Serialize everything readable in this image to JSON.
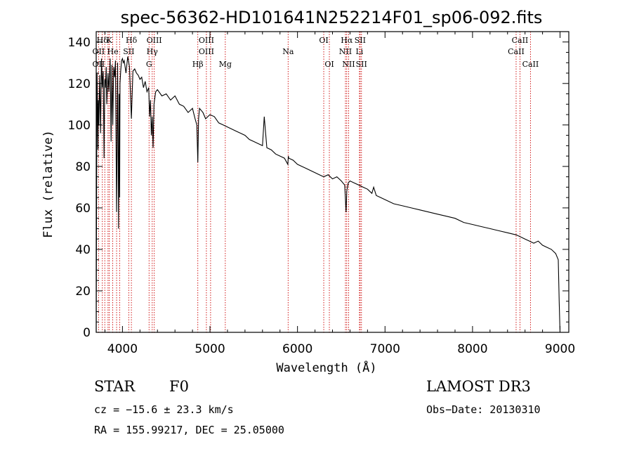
{
  "chart_data": {
    "type": "line",
    "title": "spec-56362-HD101641N252214F01_sp06-092.fits",
    "xlabel": "Wavelength (Å)",
    "ylabel": "Flux (relative)",
    "xlim": [
      3700,
      9100
    ],
    "ylim": [
      0,
      145
    ],
    "x_ticks": [
      4000,
      5000,
      6000,
      7000,
      8000,
      9000
    ],
    "y_ticks": [
      0,
      20,
      40,
      60,
      80,
      100,
      120,
      140
    ],
    "grid": false,
    "series": [
      {
        "name": "spectrum",
        "x": [
          3700,
          3705,
          3710,
          3715,
          3720,
          3725,
          3730,
          3740,
          3750,
          3760,
          3770,
          3780,
          3790,
          3798,
          3805,
          3815,
          3820,
          3835,
          3845,
          3860,
          3870,
          3880,
          3889,
          3900,
          3910,
          3920,
          3933,
          3945,
          3955,
          3962,
          3968,
          3972,
          3980,
          3990,
          4000,
          4010,
          4020,
          4040,
          4060,
          4080,
          4102,
          4120,
          4140,
          4160,
          4180,
          4200,
          4220,
          4240,
          4260,
          4280,
          4300,
          4310,
          4320,
          4330,
          4340,
          4350,
          4360,
          4380,
          4400,
          4450,
          4500,
          4550,
          4600,
          4650,
          4700,
          4750,
          4800,
          4830,
          4850,
          4861,
          4870,
          4880,
          4900,
          4920,
          4950,
          5000,
          5050,
          5100,
          5150,
          5200,
          5250,
          5300,
          5350,
          5400,
          5450,
          5500,
          5550,
          5600,
          5620,
          5650,
          5700,
          5750,
          5800,
          5850,
          5890,
          5895,
          5900,
          5950,
          6000,
          6050,
          6100,
          6150,
          6200,
          6250,
          6300,
          6350,
          6400,
          6450,
          6500,
          6540,
          6555,
          6563,
          6570,
          6580,
          6600,
          6650,
          6700,
          6750,
          6800,
          6850,
          6870,
          6900,
          6950,
          7000,
          7100,
          7200,
          7300,
          7400,
          7500,
          7600,
          7700,
          7800,
          7900,
          8000,
          8100,
          8200,
          8300,
          8400,
          8500,
          8550,
          8600,
          8650,
          8700,
          8750,
          8800,
          8850,
          8900,
          8950,
          8980,
          8990,
          9000
        ],
        "values": [
          0,
          70,
          125,
          108,
          88,
          112,
          100,
          124,
          96,
          132,
          118,
          126,
          84,
          122,
          118,
          128,
          110,
          125,
          116,
          132,
          92,
          129,
          100,
          128,
          123,
          131,
          58,
          130,
          50,
          115,
          65,
          120,
          126,
          131,
          132,
          130,
          131,
          125,
          133,
          128,
          103,
          126,
          127,
          125,
          124,
          122,
          123,
          118,
          121,
          116,
          118,
          104,
          112,
          95,
          104,
          89,
          110,
          116,
          117,
          114,
          115,
          112,
          114,
          110,
          109,
          106,
          108,
          103,
          100,
          82,
          103,
          108,
          107,
          106,
          103,
          105,
          104,
          101,
          100,
          99,
          98,
          97,
          96,
          95,
          93,
          92,
          91,
          90,
          104,
          89,
          88,
          86,
          85,
          84,
          81,
          85,
          84,
          83,
          81,
          80,
          79,
          78,
          77,
          76,
          75,
          76,
          74,
          75,
          73,
          71,
          58,
          68,
          70,
          72,
          73,
          72,
          71,
          70,
          69,
          67,
          70,
          66,
          65,
          64,
          62,
          61,
          60,
          59,
          58,
          57,
          56,
          55,
          53,
          52,
          51,
          50,
          49,
          48,
          47,
          46,
          45,
          44,
          43,
          44,
          42,
          41,
          40,
          38,
          35,
          15,
          0
        ]
      }
    ],
    "line_markers": [
      {
        "label": "Hδ",
        "wavelength": 3770,
        "row": 1
      },
      {
        "label": "K",
        "wavelength": 3850,
        "row": 1
      },
      {
        "label": "Hδ",
        "wavelength": 4102,
        "row": 1
      },
      {
        "label": "OIII",
        "wavelength": 4363,
        "row": 1
      },
      {
        "label": "OIII",
        "wavelength": 4959,
        "row": 1
      },
      {
        "label": "OI",
        "wavelength": 6300,
        "row": 1
      },
      {
        "label": "Hα",
        "wavelength": 6563,
        "row": 1
      },
      {
        "label": "SII",
        "wavelength": 6716,
        "row": 1
      },
      {
        "label": "CaII",
        "wavelength": 8542,
        "row": 1
      },
      {
        "label": "OII",
        "wavelength": 3727,
        "row": 2
      },
      {
        "label": "He",
        "wavelength": 3889,
        "row": 2
      },
      {
        "label": "SII",
        "wavelength": 4072,
        "row": 2
      },
      {
        "label": "Hγ",
        "wavelength": 4340,
        "row": 2
      },
      {
        "label": "OIII",
        "wavelength": 4959,
        "row": 2
      },
      {
        "label": "Na",
        "wavelength": 5893,
        "row": 2
      },
      {
        "label": "NII",
        "wavelength": 6548,
        "row": 2
      },
      {
        "label": "Li",
        "wavelength": 6708,
        "row": 2
      },
      {
        "label": "CaII",
        "wavelength": 8498,
        "row": 2
      },
      {
        "label": "OII",
        "wavelength": 3727,
        "row": 3
      },
      {
        "label": "G",
        "wavelength": 4304,
        "row": 3
      },
      {
        "label": "Hβ",
        "wavelength": 4861,
        "row": 3
      },
      {
        "label": "Mg",
        "wavelength": 5175,
        "row": 3
      },
      {
        "label": "OI",
        "wavelength": 6364,
        "row": 3
      },
      {
        "label": "NII",
        "wavelength": 6584,
        "row": 3
      },
      {
        "label": "SII",
        "wavelength": 6731,
        "row": 3
      },
      {
        "label": "CaII",
        "wavelength": 8662,
        "row": 3
      }
    ],
    "extra_marker_lines": [
      3798,
      3835,
      3933,
      3968,
      4102,
      4340,
      4959,
      5007,
      6563,
      6716,
      6731,
      8542
    ]
  },
  "info": {
    "object_class": "STAR",
    "subclass": "F0",
    "survey": "LAMOST DR3",
    "cz_text": "cz = −15.6 ± 23.3 km/s",
    "obs_date": "Obs−Date: 20130310",
    "radec": "RA = 155.99217, DEC =  25.05000"
  },
  "colors": {
    "line": "#000000",
    "marker": "#cc0000",
    "background": "#ffffff"
  }
}
